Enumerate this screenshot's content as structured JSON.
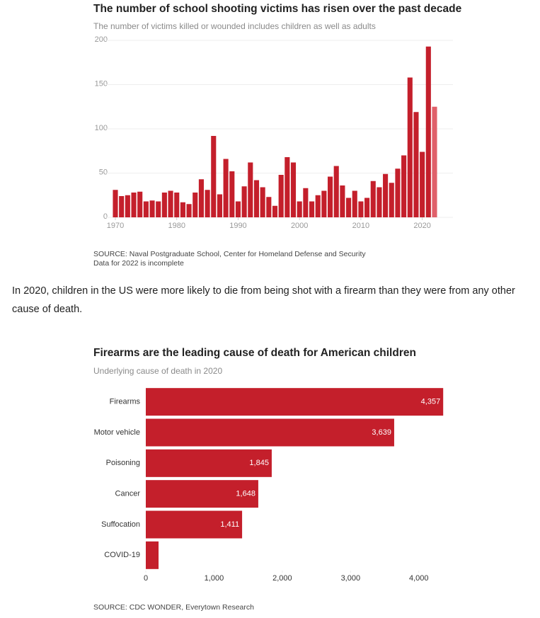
{
  "chart_data": [
    {
      "type": "bar",
      "title": "The number of school shooting victims has risen over the past decade",
      "subtitle": "The number of victims killed or wounded includes children as well as adults",
      "x": [
        1970,
        1971,
        1972,
        1973,
        1974,
        1975,
        1976,
        1977,
        1978,
        1979,
        1980,
        1981,
        1982,
        1983,
        1984,
        1985,
        1986,
        1987,
        1988,
        1989,
        1990,
        1991,
        1992,
        1993,
        1994,
        1995,
        1996,
        1997,
        1998,
        1999,
        2000,
        2001,
        2002,
        2003,
        2004,
        2005,
        2006,
        2007,
        2008,
        2009,
        2010,
        2011,
        2012,
        2013,
        2014,
        2015,
        2016,
        2017,
        2018,
        2019,
        2020,
        2021,
        2022
      ],
      "series": [
        {
          "color": "#c41f2b",
          "values": [
            31,
            24,
            25,
            28,
            29,
            18,
            19,
            18,
            28,
            30,
            28,
            17,
            15,
            28,
            43,
            31,
            92,
            26,
            66,
            52,
            18,
            35,
            62,
            42,
            34,
            23,
            13,
            48,
            68,
            62,
            18,
            33,
            18,
            25,
            30,
            46,
            58,
            36,
            22,
            30,
            18,
            22,
            41,
            34,
            49,
            39,
            55,
            70,
            158,
            119,
            74,
            193,
            null
          ]
        },
        {
          "color": "#e0606a",
          "values": [
            null,
            null,
            null,
            null,
            null,
            null,
            null,
            null,
            null,
            null,
            null,
            null,
            null,
            null,
            null,
            null,
            null,
            null,
            null,
            null,
            null,
            null,
            null,
            null,
            null,
            null,
            null,
            null,
            null,
            null,
            null,
            null,
            null,
            null,
            null,
            null,
            null,
            null,
            null,
            null,
            null,
            null,
            null,
            null,
            null,
            null,
            null,
            null,
            null,
            null,
            null,
            null,
            125
          ]
        }
      ],
      "xlim": [
        1968.5,
        2025
      ],
      "xticks": [
        1970,
        1980,
        1990,
        2000,
        2010,
        2020
      ],
      "ylim": [
        0,
        200
      ],
      "yticks": [
        0,
        50,
        100,
        150,
        200
      ],
      "grid": true,
      "source": "SOURCE: Naval Postgraduate School, Center for Homeland Defense and Security",
      "note": "Data for 2022 is incomplete"
    },
    {
      "type": "hbar",
      "title": "Firearms are the leading cause of death for American children",
      "subtitle": "Underlying cause of death in 2020",
      "categories": [
        "Firearms",
        "Motor vehicle",
        "Poisoning",
        "Cancer",
        "Suffocation",
        "COVID-19"
      ],
      "values": [
        4357,
        3639,
        1845,
        1648,
        1411,
        187
      ],
      "value_labels": [
        "4,357",
        "3,639",
        "1,845",
        "1,648",
        "1,411",
        null
      ],
      "color": "#c41f2b",
      "xlim": [
        0,
        4500
      ],
      "xticks": [
        0,
        {
          "value": 1000,
          "label": "1,000"
        },
        {
          "value": 2000,
          "label": "2,000"
        },
        {
          "value": 3000,
          "label": "3,000"
        },
        {
          "value": 4000,
          "label": "4,000"
        }
      ],
      "grid": false,
      "source": "SOURCE: CDC WONDER, Everytown Research"
    }
  ],
  "paragraph": "In 2020, children in the US were more likely to die from being shot with a firearm than they were from any other cause of death."
}
